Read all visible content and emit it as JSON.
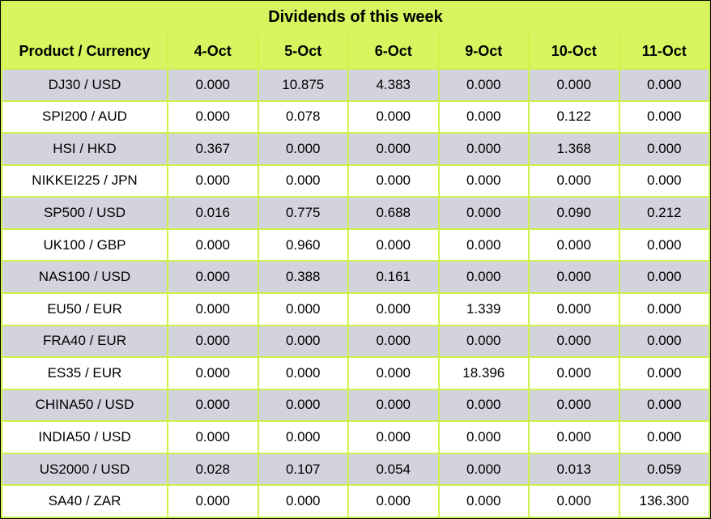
{
  "title": "Dividends of this week",
  "columns": [
    "Product / Currency",
    "4-Oct",
    "5-Oct",
    "6-Oct",
    "9-Oct",
    "10-Oct",
    "11-Oct"
  ],
  "rows": [
    {
      "product": "DJ30 / USD",
      "values": [
        "0.000",
        "10.875",
        "4.383",
        "0.000",
        "0.000",
        "0.000"
      ]
    },
    {
      "product": "SPI200 / AUD",
      "values": [
        "0.000",
        "0.078",
        "0.000",
        "0.000",
        "0.122",
        "0.000"
      ]
    },
    {
      "product": "HSI / HKD",
      "values": [
        "0.367",
        "0.000",
        "0.000",
        "0.000",
        "1.368",
        "0.000"
      ]
    },
    {
      "product": "NIKKEI225 / JPN",
      "values": [
        "0.000",
        "0.000",
        "0.000",
        "0.000",
        "0.000",
        "0.000"
      ]
    },
    {
      "product": "SP500 / USD",
      "values": [
        "0.016",
        "0.775",
        "0.688",
        "0.000",
        "0.090",
        "0.212"
      ]
    },
    {
      "product": "UK100 / GBP",
      "values": [
        "0.000",
        "0.960",
        "0.000",
        "0.000",
        "0.000",
        "0.000"
      ]
    },
    {
      "product": "NAS100 / USD",
      "values": [
        "0.000",
        "0.388",
        "0.161",
        "0.000",
        "0.000",
        "0.000"
      ]
    },
    {
      "product": "EU50 / EUR",
      "values": [
        "0.000",
        "0.000",
        "0.000",
        "1.339",
        "0.000",
        "0.000"
      ]
    },
    {
      "product": "FRA40 / EUR",
      "values": [
        "0.000",
        "0.000",
        "0.000",
        "0.000",
        "0.000",
        "0.000"
      ]
    },
    {
      "product": "ES35 / EUR",
      "values": [
        "0.000",
        "0.000",
        "0.000",
        "18.396",
        "0.000",
        "0.000"
      ]
    },
    {
      "product": "CHINA50 / USD",
      "values": [
        "0.000",
        "0.000",
        "0.000",
        "0.000",
        "0.000",
        "0.000"
      ]
    },
    {
      "product": "INDIA50 / USD",
      "values": [
        "0.000",
        "0.000",
        "0.000",
        "0.000",
        "0.000",
        "0.000"
      ]
    },
    {
      "product": "US2000 / USD",
      "values": [
        "0.028",
        "0.107",
        "0.054",
        "0.000",
        "0.013",
        "0.059"
      ]
    },
    {
      "product": "SA40 / ZAR",
      "values": [
        "0.000",
        "0.000",
        "0.000",
        "0.000",
        "0.000",
        "136.300"
      ]
    }
  ],
  "colors": {
    "accent_green": "#d6f55e",
    "grid_green": "#cdf24c",
    "row_gray": "#d2d3dd",
    "row_white": "#ffffff",
    "text": "#000000",
    "outer_frame": "#000000"
  },
  "chart_data": {
    "type": "table",
    "title": "Dividends of this week",
    "categories": [
      "4-Oct",
      "5-Oct",
      "6-Oct",
      "9-Oct",
      "10-Oct",
      "11-Oct"
    ],
    "series": [
      {
        "name": "DJ30 / USD",
        "values": [
          0.0,
          10.875,
          4.383,
          0.0,
          0.0,
          0.0
        ]
      },
      {
        "name": "SPI200 / AUD",
        "values": [
          0.0,
          0.078,
          0.0,
          0.0,
          0.122,
          0.0
        ]
      },
      {
        "name": "HSI / HKD",
        "values": [
          0.367,
          0.0,
          0.0,
          0.0,
          1.368,
          0.0
        ]
      },
      {
        "name": "NIKKEI225 / JPN",
        "values": [
          0.0,
          0.0,
          0.0,
          0.0,
          0.0,
          0.0
        ]
      },
      {
        "name": "SP500 / USD",
        "values": [
          0.016,
          0.775,
          0.688,
          0.0,
          0.09,
          0.212
        ]
      },
      {
        "name": "UK100 / GBP",
        "values": [
          0.0,
          0.96,
          0.0,
          0.0,
          0.0,
          0.0
        ]
      },
      {
        "name": "NAS100 / USD",
        "values": [
          0.0,
          0.388,
          0.161,
          0.0,
          0.0,
          0.0
        ]
      },
      {
        "name": "EU50 / EUR",
        "values": [
          0.0,
          0.0,
          0.0,
          1.339,
          0.0,
          0.0
        ]
      },
      {
        "name": "FRA40 / EUR",
        "values": [
          0.0,
          0.0,
          0.0,
          0.0,
          0.0,
          0.0
        ]
      },
      {
        "name": "ES35 / EUR",
        "values": [
          0.0,
          0.0,
          0.0,
          18.396,
          0.0,
          0.0
        ]
      },
      {
        "name": "CHINA50 / USD",
        "values": [
          0.0,
          0.0,
          0.0,
          0.0,
          0.0,
          0.0
        ]
      },
      {
        "name": "INDIA50 / USD",
        "values": [
          0.0,
          0.0,
          0.0,
          0.0,
          0.0,
          0.0
        ]
      },
      {
        "name": "US2000 / USD",
        "values": [
          0.028,
          0.107,
          0.054,
          0.0,
          0.013,
          0.059
        ]
      },
      {
        "name": "SA40 / ZAR",
        "values": [
          0.0,
          0.0,
          0.0,
          0.0,
          0.0,
          136.3
        ]
      }
    ],
    "row_header_label": "Product / Currency",
    "grid": true,
    "legend_position": "none"
  }
}
